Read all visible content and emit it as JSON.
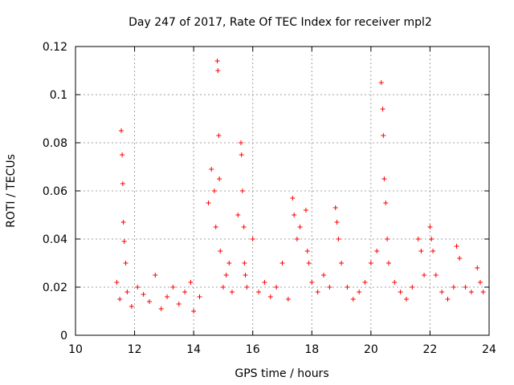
{
  "chart_data": {
    "type": "scatter",
    "title": "Day 247 of 2017, Rate Of TEC Index for receiver mpl2",
    "xlabel": "GPS time / hours",
    "ylabel": "ROTI / TECUs",
    "xlim": [
      10,
      24
    ],
    "ylim": [
      0,
      0.12
    ],
    "xticks": [
      10,
      12,
      14,
      16,
      18,
      20,
      22,
      24
    ],
    "xtick_labels": [
      "10",
      "12",
      "14",
      "16",
      "18",
      "20",
      "22",
      "24"
    ],
    "yticks": [
      0,
      0.02,
      0.04,
      0.06,
      0.08,
      0.1,
      0.12
    ],
    "ytick_labels": [
      "0",
      "0.02",
      "0.04",
      "0.06",
      "0.08",
      "0.1",
      "0.12"
    ],
    "grid": true,
    "marker": "+",
    "color": "#ff0000",
    "series": [
      {
        "name": "ROTI",
        "x": [
          11.4,
          11.5,
          11.55,
          11.58,
          11.6,
          11.62,
          11.65,
          11.7,
          11.75,
          11.9,
          12.1,
          12.3,
          12.5,
          12.7,
          12.9,
          13.1,
          13.3,
          13.5,
          13.7,
          13.9,
          14.0,
          14.2,
          14.5,
          14.6,
          14.7,
          14.75,
          14.8,
          14.82,
          14.85,
          14.87,
          14.9,
          15.0,
          15.1,
          15.2,
          15.3,
          15.5,
          15.6,
          15.62,
          15.65,
          15.7,
          15.72,
          15.75,
          15.8,
          16.0,
          16.2,
          16.4,
          16.6,
          16.8,
          17.0,
          17.2,
          17.35,
          17.4,
          17.5,
          17.6,
          17.8,
          17.85,
          17.9,
          18.0,
          18.2,
          18.4,
          18.6,
          18.8,
          18.85,
          18.9,
          19.0,
          19.2,
          19.4,
          19.6,
          19.8,
          20.0,
          20.2,
          20.35,
          20.4,
          20.42,
          20.45,
          20.5,
          20.55,
          20.6,
          20.8,
          21.0,
          21.2,
          21.4,
          21.6,
          21.7,
          21.8,
          22.0,
          22.05,
          22.1,
          22.2,
          22.4,
          22.6,
          22.8,
          22.9,
          23.0,
          23.2,
          23.4,
          23.6,
          23.7,
          23.8
        ],
        "y": [
          0.022,
          0.015,
          0.085,
          0.075,
          0.063,
          0.047,
          0.039,
          0.03,
          0.018,
          0.012,
          0.02,
          0.017,
          0.014,
          0.025,
          0.011,
          0.016,
          0.02,
          0.013,
          0.018,
          0.022,
          0.01,
          0.016,
          0.055,
          0.069,
          0.06,
          0.045,
          0.114,
          0.11,
          0.083,
          0.065,
          0.035,
          0.02,
          0.025,
          0.03,
          0.018,
          0.05,
          0.08,
          0.075,
          0.06,
          0.045,
          0.03,
          0.025,
          0.02,
          0.04,
          0.018,
          0.022,
          0.016,
          0.02,
          0.03,
          0.015,
          0.057,
          0.05,
          0.04,
          0.045,
          0.052,
          0.035,
          0.03,
          0.022,
          0.018,
          0.025,
          0.02,
          0.053,
          0.047,
          0.04,
          0.03,
          0.02,
          0.015,
          0.018,
          0.022,
          0.03,
          0.035,
          0.105,
          0.094,
          0.083,
          0.065,
          0.055,
          0.04,
          0.03,
          0.022,
          0.018,
          0.015,
          0.02,
          0.04,
          0.035,
          0.025,
          0.045,
          0.04,
          0.035,
          0.025,
          0.018,
          0.015,
          0.02,
          0.037,
          0.032,
          0.02,
          0.018,
          0.028,
          0.022,
          0.018
        ]
      }
    ]
  }
}
